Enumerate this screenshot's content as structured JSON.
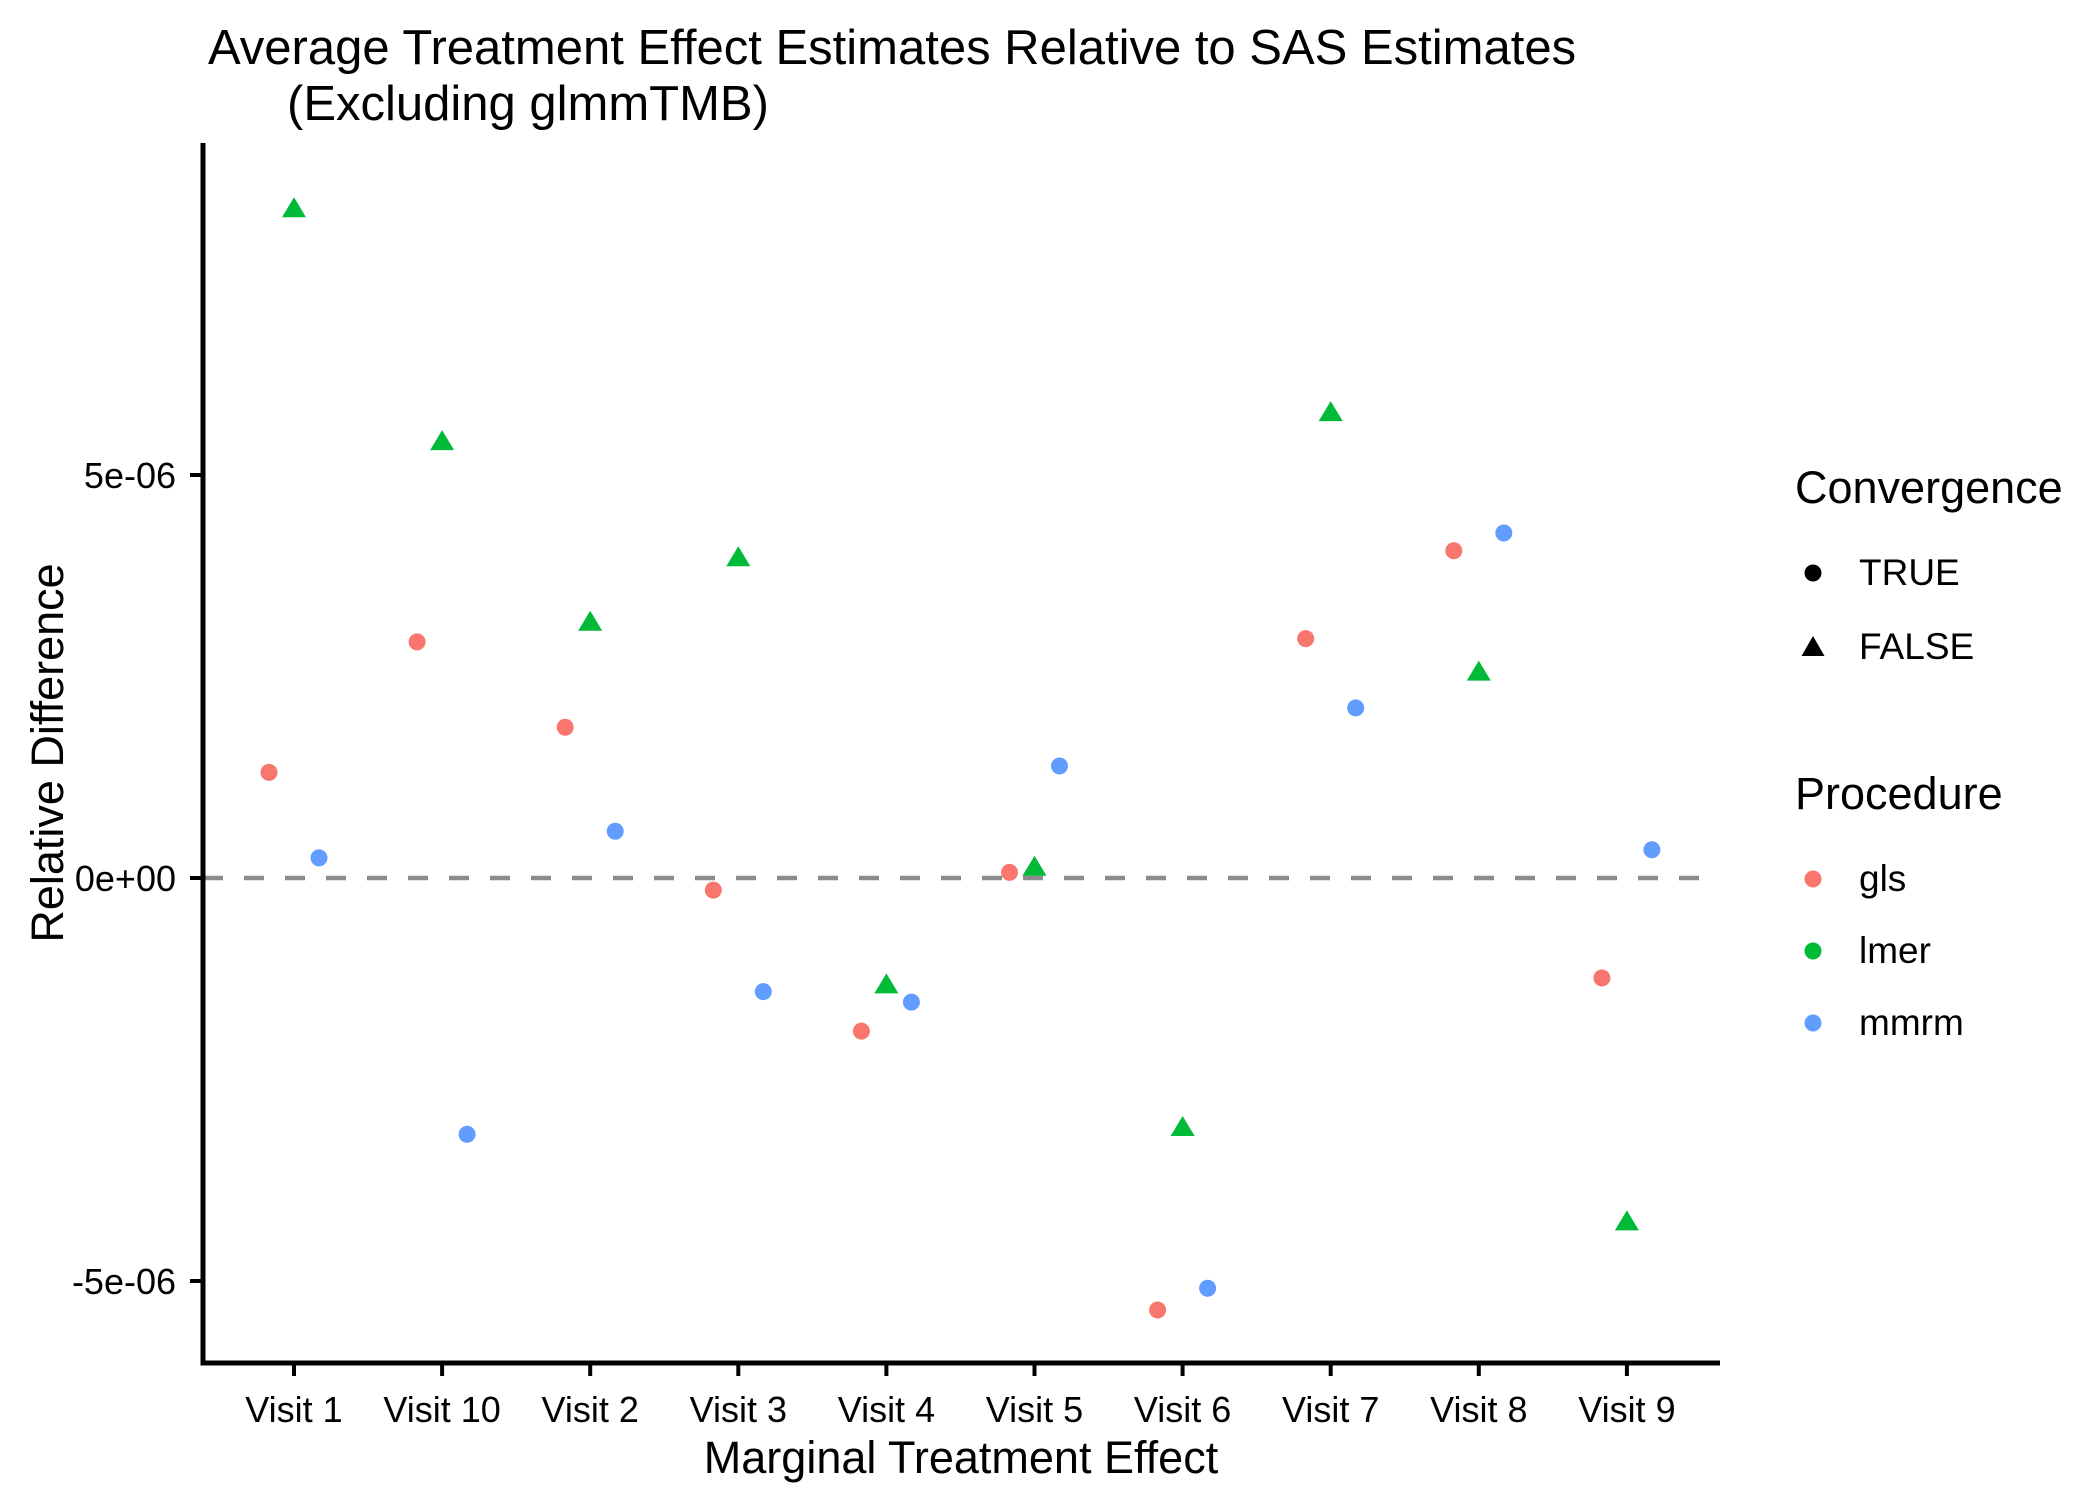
{
  "chart_data": {
    "type": "scatter",
    "title": "Average Treatment Effect Estimates Relative to SAS Estimates",
    "subtitle": "(Excluding glmmTMB)",
    "xlabel": "Marginal Treatment Effect",
    "ylabel": "Relative Difference",
    "categories": [
      "Visit 1",
      "Visit 10",
      "Visit 2",
      "Visit 3",
      "Visit 4",
      "Visit 5",
      "Visit 6",
      "Visit 7",
      "Visit 8",
      "Visit 9"
    ],
    "y_axis": {
      "ticks": [
        {
          "label": "5e-06",
          "value": 5e-06
        },
        {
          "label": "0e+00",
          "value": 0
        },
        {
          "label": "-5e-06",
          "value": -5e-06
        }
      ],
      "range": [
        -6.1e-06,
        9.2e-06
      ]
    },
    "reference_line": {
      "value": 0,
      "linetype": "dashed",
      "color": "#8C8C8C"
    },
    "series": [
      {
        "name": "gls",
        "convergence": "TRUE",
        "shape": "circle",
        "color": "#F8766D",
        "values": [
          1.31e-06,
          2.93e-06,
          1.87e-06,
          -1.5e-07,
          -1.9e-06,
          7e-08,
          -5.36e-06,
          2.97e-06,
          4.06e-06,
          -1.24e-06
        ]
      },
      {
        "name": "lmer",
        "convergence": "FALSE",
        "shape": "triangle",
        "color": "#00BA38",
        "values": [
          8.31e-06,
          5.42e-06,
          3.18e-06,
          3.98e-06,
          -1.32e-06,
          1.4e-07,
          -3.09e-06,
          5.78e-06,
          2.56e-06,
          -4.26e-06
        ]
      },
      {
        "name": "mmrm",
        "convergence": "TRUE",
        "shape": "circle",
        "color": "#619CFF",
        "values": [
          2.5e-07,
          -3.18e-06,
          5.8e-07,
          -1.41e-06,
          -1.54e-06,
          1.39e-06,
          -5.09e-06,
          2.11e-06,
          4.28e-06,
          3.5e-07
        ]
      }
    ],
    "legend_position": "right",
    "grid": "off"
  },
  "legend": {
    "convergence": {
      "title": "Convergence",
      "items": [
        {
          "label": "TRUE",
          "shape": "circle",
          "color": "#000000"
        },
        {
          "label": "FALSE",
          "shape": "triangle",
          "color": "#000000"
        }
      ]
    },
    "procedure": {
      "title": "Procedure",
      "items": [
        {
          "label": "gls",
          "shape": "circle",
          "color": "#F8766D"
        },
        {
          "label": "lmer",
          "shape": "circle",
          "color": "#00BA38"
        },
        {
          "label": "mmrm",
          "shape": "circle",
          "color": "#619CFF"
        }
      ]
    }
  },
  "colors": {
    "axis": "#000000",
    "tick_text": "#000000",
    "reference_line": "#8C8C8C",
    "background": "#FFFFFF"
  }
}
